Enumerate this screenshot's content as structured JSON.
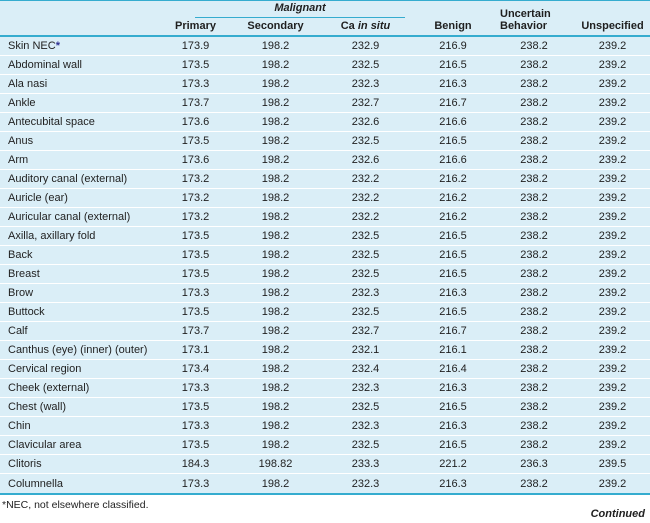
{
  "colors": {
    "row_bg": "#daeef7",
    "border_teal": "#35accf",
    "text": "#1f1f1f",
    "asterisk_blue": "#2e3192"
  },
  "header": {
    "group": {
      "label": "Malignant"
    },
    "columns": [
      {
        "label": "Primary"
      },
      {
        "label": "Secondary"
      },
      {
        "label": "Ca in situ",
        "italic_part": "in situ"
      },
      {
        "label": "Benign"
      },
      {
        "label": "Uncertain Behavior",
        "wrap": true
      },
      {
        "label": "Unspecified"
      }
    ]
  },
  "rows": [
    {
      "site": "Skin NEC*",
      "codes": [
        "173.9",
        "198.2",
        "232.9",
        "216.9",
        "238.2",
        "239.2"
      ]
    },
    {
      "site": "Abdominal wall",
      "codes": [
        "173.5",
        "198.2",
        "232.5",
        "216.5",
        "238.2",
        "239.2"
      ]
    },
    {
      "site": "Ala nasi",
      "codes": [
        "173.3",
        "198.2",
        "232.3",
        "216.3",
        "238.2",
        "239.2"
      ]
    },
    {
      "site": "Ankle",
      "codes": [
        "173.7",
        "198.2",
        "232.7",
        "216.7",
        "238.2",
        "239.2"
      ]
    },
    {
      "site": "Antecubital space",
      "codes": [
        "173.6",
        "198.2",
        "232.6",
        "216.6",
        "238.2",
        "239.2"
      ]
    },
    {
      "site": "Anus",
      "codes": [
        "173.5",
        "198.2",
        "232.5",
        "216.5",
        "238.2",
        "239.2"
      ]
    },
    {
      "site": "Arm",
      "codes": [
        "173.6",
        "198.2",
        "232.6",
        "216.6",
        "238.2",
        "239.2"
      ]
    },
    {
      "site": "Auditory canal (external)",
      "codes": [
        "173.2",
        "198.2",
        "232.2",
        "216.2",
        "238.2",
        "239.2"
      ]
    },
    {
      "site": "Auricle (ear)",
      "codes": [
        "173.2",
        "198.2",
        "232.2",
        "216.2",
        "238.2",
        "239.2"
      ]
    },
    {
      "site": "Auricular canal (external)",
      "codes": [
        "173.2",
        "198.2",
        "232.2",
        "216.2",
        "238.2",
        "239.2"
      ]
    },
    {
      "site": "Axilla, axillary fold",
      "codes": [
        "173.5",
        "198.2",
        "232.5",
        "216.5",
        "238.2",
        "239.2"
      ]
    },
    {
      "site": "Back",
      "codes": [
        "173.5",
        "198.2",
        "232.5",
        "216.5",
        "238.2",
        "239.2"
      ]
    },
    {
      "site": "Breast",
      "codes": [
        "173.5",
        "198.2",
        "232.5",
        "216.5",
        "238.2",
        "239.2"
      ]
    },
    {
      "site": "Brow",
      "codes": [
        "173.3",
        "198.2",
        "232.3",
        "216.3",
        "238.2",
        "239.2"
      ]
    },
    {
      "site": "Buttock",
      "codes": [
        "173.5",
        "198.2",
        "232.5",
        "216.5",
        "238.2",
        "239.2"
      ]
    },
    {
      "site": "Calf",
      "codes": [
        "173.7",
        "198.2",
        "232.7",
        "216.7",
        "238.2",
        "239.2"
      ]
    },
    {
      "site": "Canthus (eye) (inner) (outer)",
      "codes": [
        "173.1",
        "198.2",
        "232.1",
        "216.1",
        "238.2",
        "239.2"
      ]
    },
    {
      "site": "Cervical region",
      "codes": [
        "173.4",
        "198.2",
        "232.4",
        "216.4",
        "238.2",
        "239.2"
      ]
    },
    {
      "site": "Cheek (external)",
      "codes": [
        "173.3",
        "198.2",
        "232.3",
        "216.3",
        "238.2",
        "239.2"
      ]
    },
    {
      "site": "Chest (wall)",
      "codes": [
        "173.5",
        "198.2",
        "232.5",
        "216.5",
        "238.2",
        "239.2"
      ]
    },
    {
      "site": "Chin",
      "codes": [
        "173.3",
        "198.2",
        "232.3",
        "216.3",
        "238.2",
        "239.2"
      ]
    },
    {
      "site": "Clavicular area",
      "codes": [
        "173.5",
        "198.2",
        "232.5",
        "216.5",
        "238.2",
        "239.2"
      ]
    },
    {
      "site": "Clitoris",
      "codes": [
        "184.3",
        "198.82",
        "233.3",
        "221.2",
        "236.3",
        "239.5"
      ]
    },
    {
      "site": "Columnella",
      "codes": [
        "173.3",
        "198.2",
        "232.3",
        "216.3",
        "238.2",
        "239.2"
      ]
    }
  ],
  "footnote": "*NEC, not elsewhere classified.",
  "continued_label": "Continued"
}
